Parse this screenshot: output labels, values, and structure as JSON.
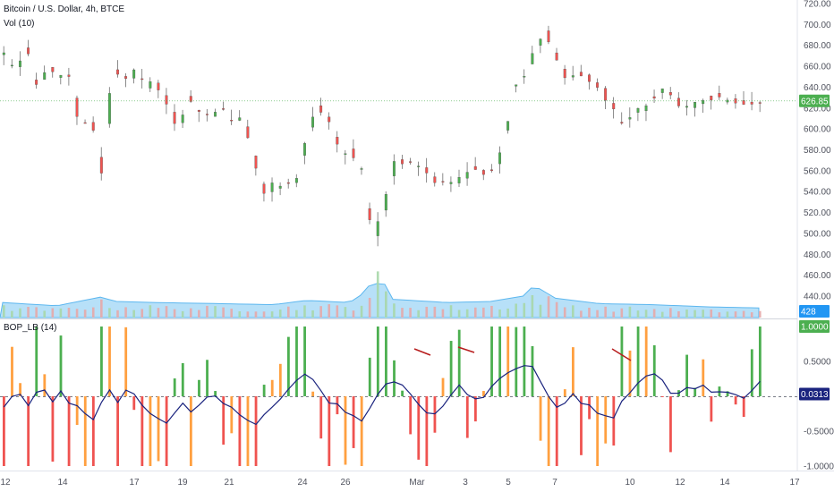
{
  "title": "Bitcoin / U.S. Dollar, 4h, BTCE",
  "volume_label": "Vol (10)",
  "indicator_label": "BOP_LB (14)",
  "price_tag": "626.85",
  "volume_tag": "428",
  "bop_top_tag": "1.0000",
  "bop_last_tag": "0.0313",
  "colors": {
    "up": "#4caf50",
    "down": "#ef5350",
    "orange": "#ffa040",
    "vol_ma": "#9fd6f5",
    "bop_line": "#1a237e",
    "divergence": "#b71c1c",
    "tag_price": "#4caf50",
    "tag_vol": "#2196f3",
    "tag_last": "#1a237e"
  },
  "chart_data": [
    {
      "type": "candlestick",
      "title": "Bitcoin / U.S. Dollar, 4h, BTCE",
      "ylim": [
        420,
        720
      ],
      "y_ticks": [
        "720.00",
        "700.00",
        "680.00",
        "660.00",
        "640.00",
        "620.00",
        "600.00",
        "580.00",
        "560.00",
        "540.00",
        "520.00",
        "500.00",
        "480.00",
        "460.00",
        "440.00"
      ],
      "x_ticks": [
        "12",
        "14",
        "17",
        "19",
        "21",
        "24",
        "26",
        "Mar",
        "3",
        "5",
        "7",
        "10",
        "12",
        "14",
        "17"
      ],
      "last_price": 626.85,
      "close_path": [
        [
          0,
          672
        ],
        [
          4,
          655
        ],
        [
          8,
          678
        ],
        [
          12,
          642
        ],
        [
          16,
          660
        ],
        [
          20,
          648
        ],
        [
          24,
          652
        ],
        [
          28,
          600
        ],
        [
          32,
          610
        ],
        [
          36,
          560
        ],
        [
          40,
          660
        ],
        [
          44,
          648
        ],
        [
          48,
          655
        ],
        [
          52,
          645
        ],
        [
          56,
          640
        ],
        [
          60,
          625
        ],
        [
          64,
          600
        ],
        [
          68,
          630
        ],
        [
          72,
          615
        ],
        [
          76,
          610
        ],
        [
          80,
          618
        ],
        [
          84,
          610
        ],
        [
          88,
          612
        ],
        [
          92,
          570
        ],
        [
          96,
          540
        ],
        [
          100,
          548
        ],
        [
          104,
          545
        ],
        [
          108,
          550
        ],
        [
          112,
          600
        ],
        [
          116,
          618
        ],
        [
          120,
          605
        ],
        [
          124,
          580
        ],
        [
          128,
          578
        ],
        [
          132,
          560
        ],
        [
          136,
          495
        ],
        [
          140,
          525
        ],
        [
          144,
          570
        ],
        [
          148,
          568
        ],
        [
          152,
          565
        ],
        [
          156,
          560
        ],
        [
          160,
          548
        ],
        [
          164,
          545
        ],
        [
          168,
          552
        ],
        [
          172,
          563
        ],
        [
          176,
          557
        ],
        [
          180,
          560
        ],
        [
          184,
          580
        ],
        [
          188,
          640
        ],
        [
          192,
          650
        ],
        [
          196,
          680
        ],
        [
          200,
          690
        ],
        [
          204,
          668
        ],
        [
          208,
          645
        ],
        [
          212,
          652
        ],
        [
          216,
          648
        ],
        [
          220,
          640
        ],
        [
          224,
          620
        ],
        [
          228,
          605
        ],
        [
          232,
          612
        ],
        [
          236,
          622
        ],
        [
          240,
          632
        ],
        [
          244,
          638
        ],
        [
          248,
          625
        ],
        [
          252,
          620
        ],
        [
          256,
          624
        ],
        [
          260,
          628
        ],
        [
          264,
          630
        ],
        [
          268,
          627
        ],
        [
          272,
          625
        ],
        [
          276,
          624
        ],
        [
          279,
          626.85
        ]
      ]
    },
    {
      "type": "bar",
      "name": "Vol (10)",
      "last_value": 428,
      "relative_volume": [
        [
          0,
          0.9
        ],
        [
          20,
          0.6
        ],
        [
          36,
          1.4
        ],
        [
          42,
          1.0
        ],
        [
          56,
          0.9
        ],
        [
          80,
          0.8
        ],
        [
          100,
          0.7
        ],
        [
          112,
          1.1
        ],
        [
          128,
          0.9
        ],
        [
          134,
          1.9
        ],
        [
          138,
          4.0
        ],
        [
          144,
          1.2
        ],
        [
          164,
          0.9
        ],
        [
          180,
          1.0
        ],
        [
          192,
          1.5
        ],
        [
          196,
          2.5
        ],
        [
          204,
          1.3
        ],
        [
          220,
          0.8
        ],
        [
          240,
          0.7
        ],
        [
          260,
          0.5
        ],
        [
          279,
          0.4
        ]
      ]
    },
    {
      "type": "bar",
      "name": "BOP_LB (14)",
      "ylim": [
        -1.05,
        1.05
      ],
      "y_ticks": [
        "0.5000",
        "-0.5000",
        "-1.0000"
      ],
      "last_bar": 1.0,
      "last_line": 0.0313,
      "seed": 12345
    }
  ]
}
